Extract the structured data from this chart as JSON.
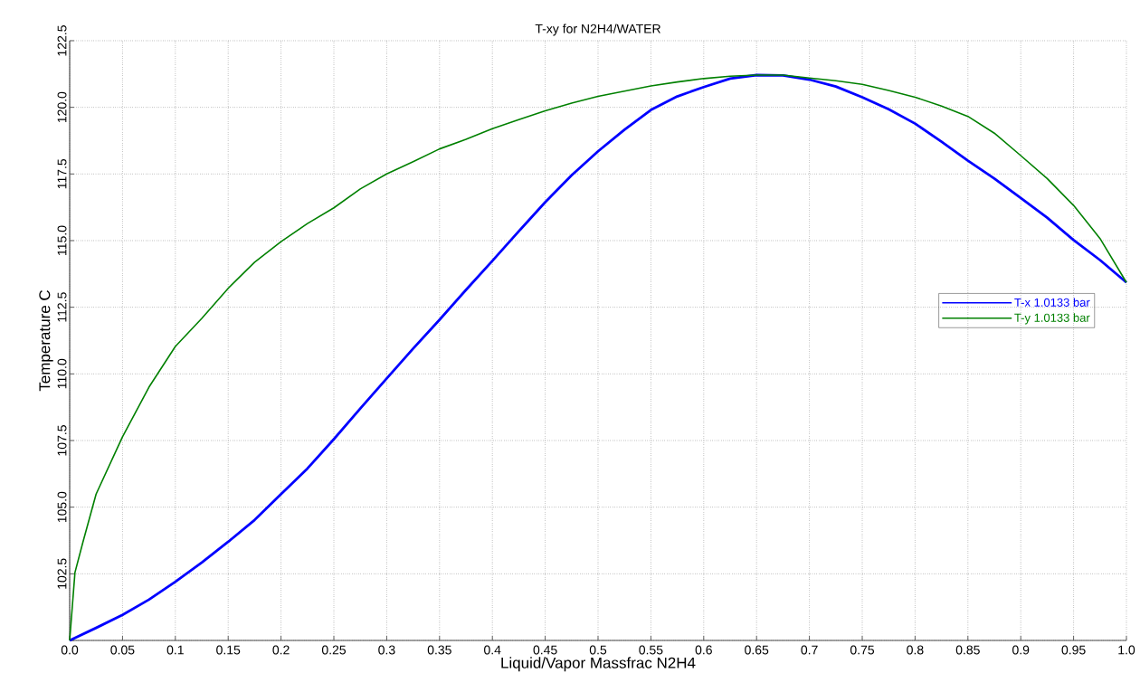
{
  "chart_data": {
    "type": "line",
    "title": "T-xy for N2H4/WATER",
    "xlabel": "Liquid/Vapor Massfrac N2H4",
    "ylabel": "Temperature C",
    "x": [
      0,
      0.025,
      0.05,
      0.075,
      0.1,
      0.125,
      0.15,
      0.175,
      0.2,
      0.225,
      0.25,
      0.275,
      0.3,
      0.325,
      0.35,
      0.375,
      0.4,
      0.425,
      0.45,
      0.475,
      0.5,
      0.525,
      0.55,
      0.575,
      0.6,
      0.625,
      0.65,
      0.675,
      0.7,
      0.725,
      0.75,
      0.775,
      0.8,
      0.825,
      0.85,
      0.875,
      0.9,
      0.925,
      0.95,
      0.975,
      1.0
    ],
    "series": [
      {
        "name": "T-x 1.0133 bar",
        "color": "#0000ff",
        "values": [
          100,
          100.47,
          100.96,
          101.53,
          102.2,
          102.92,
          103.7,
          104.52,
          105.49,
          106.45,
          107.55,
          108.7,
          109.83,
          110.95,
          112.03,
          113.15,
          114.24,
          115.35,
          116.44,
          117.45,
          118.35,
          119.16,
          119.9,
          120.41,
          120.76,
          121.08,
          121.21,
          121.2,
          121.04,
          120.78,
          120.38,
          119.93,
          119.39,
          118.71,
          118.0,
          117.33,
          116.6,
          115.86,
          115.02,
          114.27,
          113.43
        ]
      },
      {
        "name": "T-y 1.0133 bar",
        "color": "#008000",
        "x": [
          0,
          0.005,
          0.0125,
          0.025,
          0.05,
          0.075,
          0.1,
          0.125,
          0.15,
          0.175,
          0.2,
          0.225,
          0.25,
          0.275,
          0.3,
          0.325,
          0.35,
          0.375,
          0.4,
          0.425,
          0.45,
          0.475,
          0.5,
          0.525,
          0.55,
          0.575,
          0.6,
          0.625,
          0.65,
          0.675,
          0.7,
          0.725,
          0.75,
          0.775,
          0.8,
          0.825,
          0.85,
          0.875,
          0.9,
          0.925,
          0.95,
          0.975,
          1.0
        ],
        "values": [
          100,
          102.55,
          103.68,
          105.49,
          107.64,
          109.5,
          111.03,
          112.08,
          113.21,
          114.19,
          114.96,
          115.64,
          116.23,
          116.94,
          117.5,
          117.96,
          118.44,
          118.8,
          119.2,
          119.54,
          119.87,
          120.16,
          120.41,
          120.61,
          120.8,
          120.95,
          121.08,
          121.17,
          121.21,
          121.21,
          121.1,
          121.0,
          120.86,
          120.63,
          120.38,
          120.05,
          119.66,
          119.03,
          118.19,
          117.33,
          116.32,
          115.08,
          113.43
        ]
      }
    ],
    "xlim": [
      0,
      1
    ],
    "ylim": [
      100,
      122.5
    ],
    "xticks": [
      {
        "value": 0,
        "label": "0.0"
      },
      0.05,
      0.1,
      0.15,
      0.2,
      0.25,
      0.3,
      0.35,
      0.4,
      0.45,
      0.5,
      0.55,
      0.6,
      0.65,
      0.7,
      0.75,
      0.8,
      0.85,
      0.9,
      0.95,
      {
        "value": 1,
        "label": "1.0"
      }
    ],
    "yticks": [
      {
        "value": 100,
        "label": null
      },
      102.5,
      {
        "value": 105,
        "label": "105.0"
      },
      107.5,
      {
        "value": 110,
        "label": "110.0"
      },
      112.5,
      {
        "value": 115,
        "label": "115.0"
      },
      117.5,
      {
        "value": 120,
        "label": "120.0"
      },
      122.5
    ],
    "grid": true,
    "legend": "right",
    "marker": "none",
    "line_style": "solid"
  }
}
